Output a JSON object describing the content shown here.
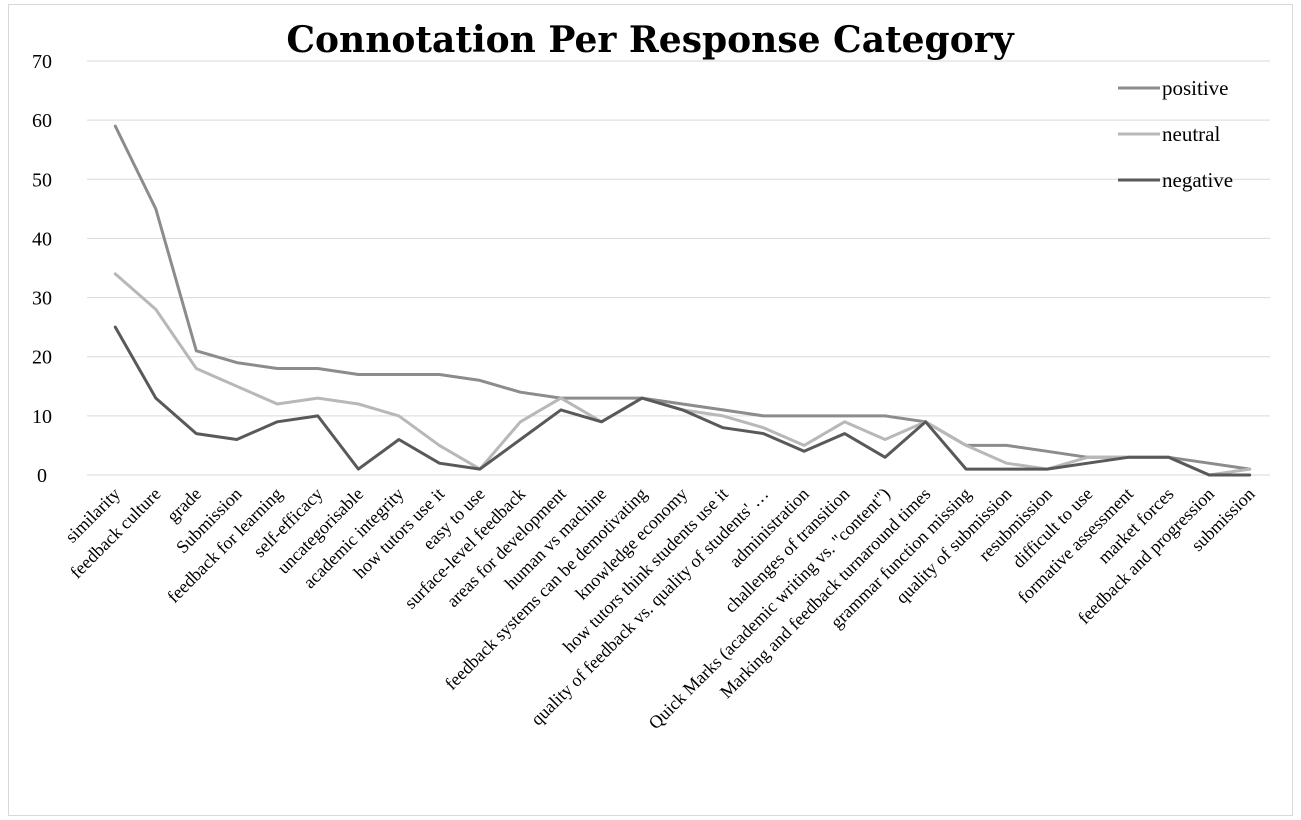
{
  "chart_data": {
    "type": "line",
    "title": "Connotation Per Response Category",
    "ylim": [
      0,
      70
    ],
    "yticks": [
      0,
      10,
      20,
      30,
      40,
      50,
      60,
      70
    ],
    "grid": true,
    "legend_position": "top-right",
    "categories": [
      "similarity",
      "feedback culture",
      "grade",
      "Submission",
      "feedback for learning",
      "self-efficacy",
      "uncategorisable",
      "academic integrity",
      "how tutors use it",
      "easy to use",
      "surface-level feedback",
      "areas for development",
      "human vs machine",
      "feedback systems can be demotivating",
      "knowledge economy",
      "how tutors think students use it",
      "quality of feedback vs. quality of students' …",
      "administration",
      "challenges of transition",
      "Quick Marks (academic writing vs. \"content\")",
      "Marking and feedback  turnaround times",
      "grammar function missing",
      "quality of submission",
      "resubmission",
      "difficult to use",
      "formative assessment",
      "market forces",
      "feedback and progression",
      "submission"
    ],
    "series": [
      {
        "name": "positive",
        "color": "#8c8c8c",
        "values": [
          59,
          45,
          21,
          19,
          18,
          18,
          17,
          17,
          17,
          16,
          14,
          13,
          13,
          13,
          12,
          11,
          10,
          10,
          10,
          10,
          9,
          5,
          5,
          4,
          3,
          3,
          3,
          2,
          1
        ]
      },
      {
        "name": "neutral",
        "color": "#b8b8b8",
        "values": [
          34,
          28,
          18,
          15,
          12,
          13,
          12,
          10,
          5,
          1,
          9,
          13,
          9,
          13,
          11,
          10,
          8,
          5,
          9,
          6,
          9,
          5,
          2,
          1,
          3,
          3,
          3,
          0,
          1
        ]
      },
      {
        "name": "negative",
        "color": "#595959",
        "values": [
          25,
          13,
          7,
          6,
          9,
          10,
          1,
          6,
          2,
          1,
          6,
          11,
          9,
          13,
          11,
          8,
          7,
          4,
          7,
          3,
          9,
          1,
          1,
          1,
          2,
          3,
          3,
          0,
          0
        ]
      }
    ]
  }
}
